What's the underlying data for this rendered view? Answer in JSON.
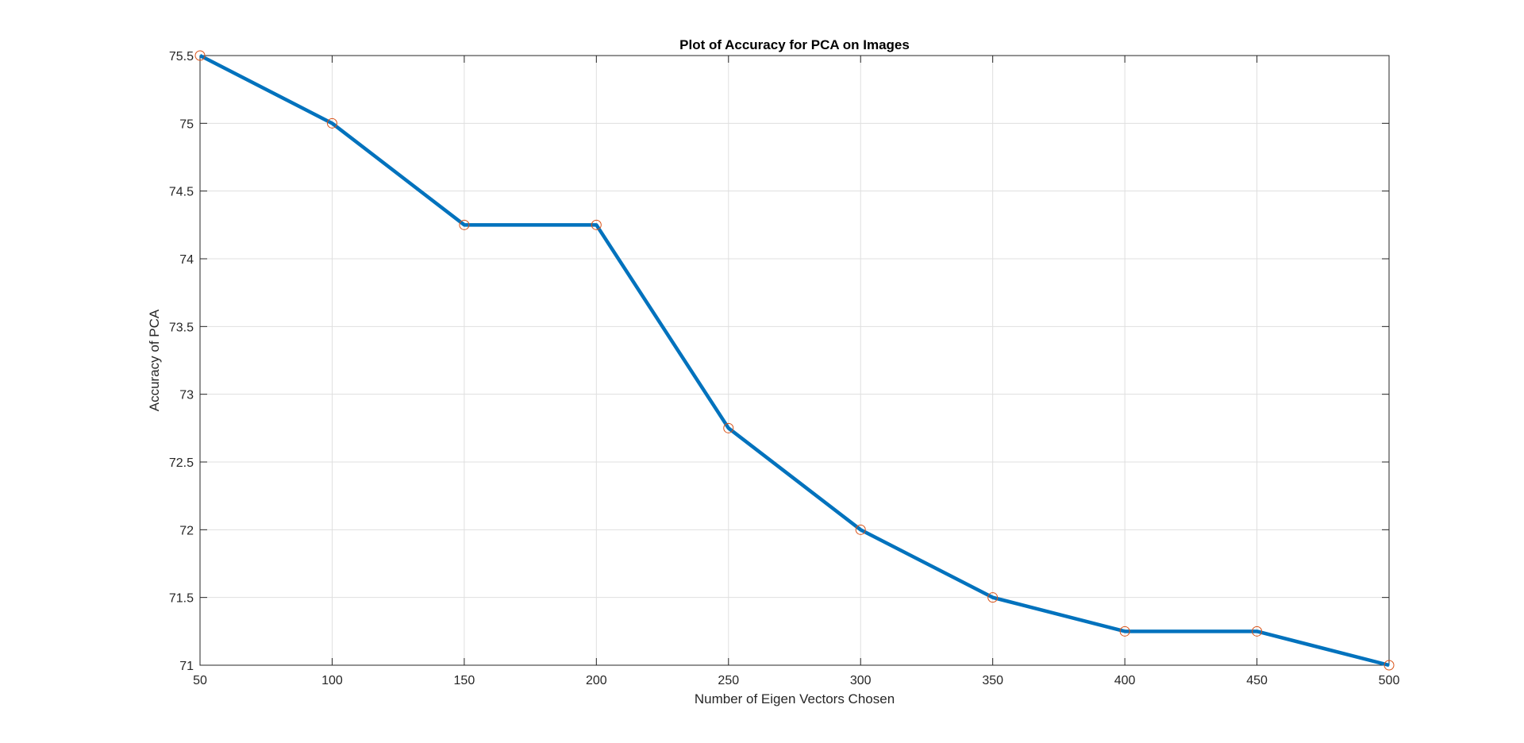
{
  "chart_data": {
    "type": "line",
    "title": "Plot of Accuracy for PCA on Images",
    "xlabel": "Number of Eigen Vectors Chosen",
    "ylabel": "Accuracy of PCA",
    "xlim": [
      50,
      500
    ],
    "ylim": [
      71,
      75.5
    ],
    "x_ticks": [
      "50",
      "100",
      "150",
      "200",
      "250",
      "300",
      "350",
      "400",
      "450",
      "500"
    ],
    "y_ticks": [
      "71",
      "71.5",
      "72",
      "72.5",
      "73",
      "73.5",
      "74",
      "74.5",
      "75",
      "75.5"
    ],
    "grid": true,
    "series": [
      {
        "x": [
          50,
          100,
          150,
          200,
          250,
          300,
          350,
          400,
          450,
          500
        ],
        "y": [
          75.5,
          75,
          74.25,
          74.25,
          72.75,
          72,
          71.5,
          71.25,
          71.25,
          71
        ],
        "line_color": "#0072BD",
        "marker": "circle",
        "marker_color": "#D95319"
      }
    ]
  }
}
